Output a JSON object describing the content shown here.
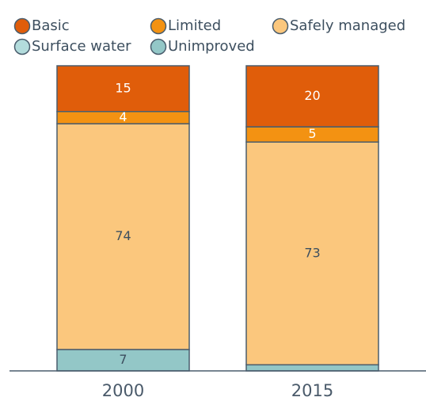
{
  "chart_data": {
    "type": "stacked_bar",
    "categories": [
      "2000",
      "2015"
    ],
    "series": [
      {
        "name": "Basic",
        "color": "#e05d0a",
        "values": [
          15,
          20
        ]
      },
      {
        "name": "Limited",
        "color": "#f39212",
        "values": [
          4,
          5
        ]
      },
      {
        "name": "Safely managed",
        "color": "#fbc77d",
        "values": [
          74,
          73
        ]
      },
      {
        "name": "Surface water",
        "color": "#b3dcdc",
        "values": [
          0,
          0
        ]
      },
      {
        "name": "Unimproved",
        "color": "#93c7c7",
        "values": [
          7,
          2
        ]
      }
    ],
    "ylim": [
      0,
      100
    ]
  }
}
